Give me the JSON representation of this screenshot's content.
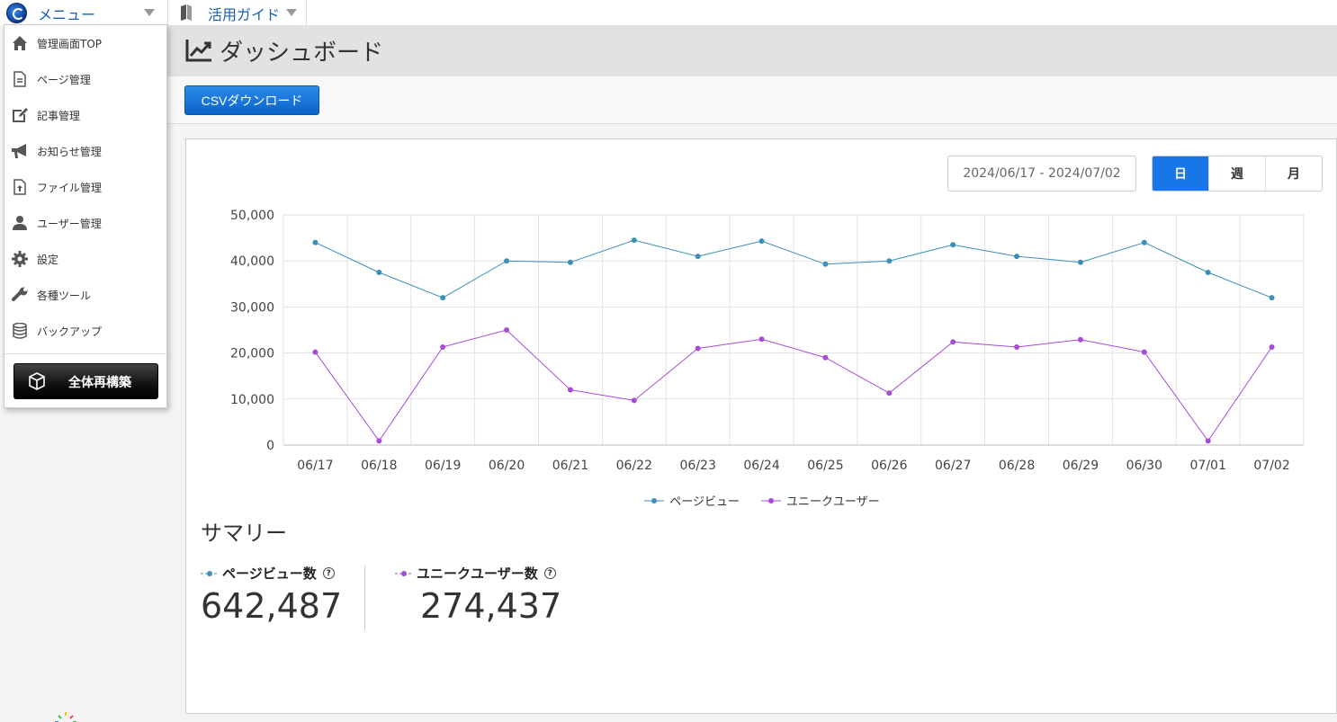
{
  "topbar": {
    "menu_label": "メニュー",
    "guide_label": "活用ガイド"
  },
  "header": {
    "title": "ダッシュボード",
    "icon": "trend-chart-icon"
  },
  "toolbar": {
    "csv_button": "CSVダウンロード"
  },
  "controls": {
    "date_range": "2024/06/17 - 2024/07/02",
    "periods": [
      {
        "label": "日",
        "active": true
      },
      {
        "label": "週",
        "active": false
      },
      {
        "label": "月",
        "active": false
      }
    ]
  },
  "menu": {
    "items": [
      {
        "label": "管理画面TOP",
        "icon": "home-icon"
      },
      {
        "label": "ページ管理",
        "icon": "page-icon"
      },
      {
        "label": "記事管理",
        "icon": "edit-icon"
      },
      {
        "label": "お知らせ管理",
        "icon": "megaphone-icon"
      },
      {
        "label": "ファイル管理",
        "icon": "file-upload-icon"
      },
      {
        "label": "ユーザー管理",
        "icon": "user-icon"
      },
      {
        "label": "設定",
        "icon": "gear-icon"
      },
      {
        "label": "各種ツール",
        "icon": "wrench-icon"
      },
      {
        "label": "バックアップ",
        "icon": "database-icon"
      }
    ],
    "rebuild_button": "全体再構築"
  },
  "chart_data": {
    "type": "line",
    "categories": [
      "06/17",
      "06/18",
      "06/19",
      "06/20",
      "06/21",
      "06/22",
      "06/23",
      "06/24",
      "06/25",
      "06/26",
      "06/27",
      "06/28",
      "06/29",
      "06/30",
      "07/01",
      "07/02"
    ],
    "series": [
      {
        "name": "ページビュー",
        "color": "#3b8fb8",
        "values": [
          44000,
          37500,
          32000,
          40000,
          39700,
          44500,
          41000,
          44300,
          39300,
          40000,
          43500,
          41000,
          39700,
          44000,
          37500,
          32000
        ]
      },
      {
        "name": "ユニークユーザー",
        "color": "#a64bd8",
        "values": [
          20200,
          900,
          21300,
          25000,
          12000,
          9700,
          21000,
          23000,
          19000,
          11300,
          22400,
          21300,
          22900,
          20200,
          900,
          21300
        ]
      }
    ],
    "y_ticks": [
      "0",
      "10,000",
      "20,000",
      "30,000",
      "40,000",
      "50,000"
    ],
    "ylim": [
      0,
      50000
    ],
    "grid": true,
    "legend": "bottom-center"
  },
  "summary": {
    "title": "サマリー",
    "pageviews_label": "ページビュー数",
    "pageviews_value": "642,487",
    "users_label": "ユニークユーザー数",
    "users_value": "274,437"
  },
  "colors": {
    "accent": "#1877e8",
    "pageview": "#3b8fb8",
    "user": "#a64bd8"
  }
}
